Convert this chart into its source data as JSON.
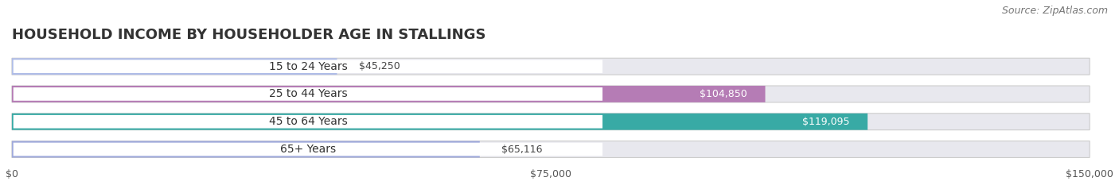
{
  "title": "HOUSEHOLD INCOME BY HOUSEHOLDER AGE IN STALLINGS",
  "source": "Source: ZipAtlas.com",
  "categories": [
    "15 to 24 Years",
    "25 to 44 Years",
    "45 to 64 Years",
    "65+ Years"
  ],
  "values": [
    45250,
    104850,
    119095,
    65116
  ],
  "bar_colors": [
    "#b0bde8",
    "#b57cb5",
    "#38aaa5",
    "#a0aadc"
  ],
  "value_label_colors": [
    "#444444",
    "#ffffff",
    "#ffffff",
    "#444444"
  ],
  "xlim": [
    0,
    150000
  ],
  "xticks": [
    0,
    75000,
    150000
  ],
  "xtick_labels": [
    "$0",
    "$75,000",
    "$150,000"
  ],
  "background_color": "#ffffff",
  "bar_track_color": "#e8e8ee",
  "title_fontsize": 13,
  "source_fontsize": 9,
  "bar_label_fontsize": 9,
  "value_label_fontsize": 9,
  "cat_label_fontsize": 10
}
